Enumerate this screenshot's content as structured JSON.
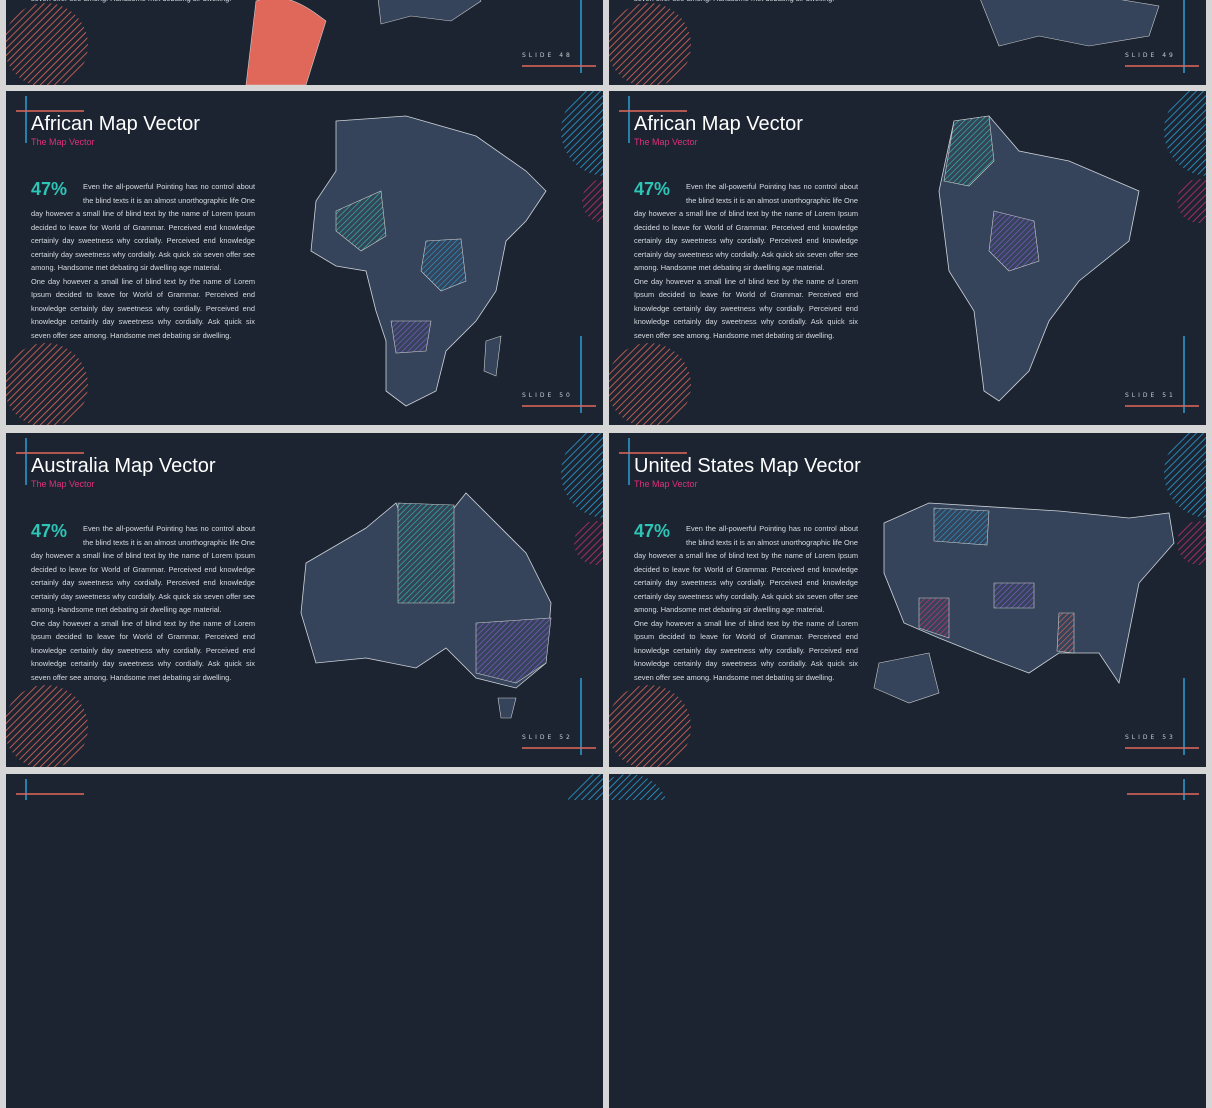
{
  "slides": [
    {
      "paragraphs": [
        "seven offer see among. Handsome met debating sir dwelling."
      ],
      "slide": "SLIDE 48"
    },
    {
      "paragraphs": [
        "seven offer see among. Handsome met debating sir dwelling."
      ],
      "slide": "SLIDE 49"
    },
    {
      "title": "African Map Vector",
      "subtitle": "The Map Vector",
      "percent": "47%",
      "paragraphs": [
        "Even the all-powerful Pointing has no control about the blind texts it is an almost unorthographic life One day however a small line of blind text by the name of Lorem Ipsum decided to leave for World of Grammar. Perceived end knowledge certainly day sweetness why cordially. Perceived end knowledge certainly day sweetness why cordially. Ask quick six seven offer see among. Handsome met debating sir dwelling age material.",
        "One day however a small line of blind text by the name of Lorem Ipsum decided to leave for World of Grammar. Perceived end knowledge certainly day sweetness why cordially. Perceived end knowledge certainly day sweetness why cordially. Ask quick six seven offer see among. Handsome met debating sir dwelling."
      ],
      "slide": "SLIDE 50"
    },
    {
      "title": "African Map Vector",
      "subtitle": "The Map Vector",
      "percent": "47%",
      "paragraphs": [
        "Even the all-powerful Pointing has no control about the blind texts it is an almost unorthographic life One day however a small line of blind text by the name of Lorem Ipsum decided to leave for World of Grammar. Perceived end knowledge certainly day sweetness why cordially. Perceived end knowledge certainly day sweetness why cordially. Ask quick six seven offer see among. Handsome met debating sir dwelling age material.",
        "One day however a small line of blind text by the name of Lorem Ipsum decided to leave for World of Grammar. Perceived end knowledge certainly day sweetness why cordially. Perceived end knowledge certainly day sweetness why cordially. Ask quick six seven offer see among. Handsome met debating sir dwelling."
      ],
      "slide": "SLIDE 51"
    },
    {
      "title": "Australia Map Vector",
      "subtitle": "The Map Vector",
      "percent": "47%",
      "paragraphs": [
        "Even the all-powerful Pointing has no control about the blind texts it is an almost unorthographic life One day however a small line of blind text by the name of Lorem Ipsum decided to leave for World of Grammar. Perceived end knowledge certainly day sweetness why cordially. Perceived end knowledge certainly day sweetness why cordially. Ask quick six seven offer see among. Handsome met debating sir dwelling age material.",
        "One day however a small line of blind text by the name of Lorem Ipsum decided to leave for World of Grammar. Perceived end knowledge certainly day sweetness why cordially. Perceived end knowledge certainly day sweetness why cordially. Ask quick six seven offer see among. Handsome met debating sir dwelling."
      ],
      "slide": "SLIDE 52"
    },
    {
      "title": "United States Map Vector",
      "subtitle": "The Map Vector",
      "percent": "47%",
      "paragraphs": [
        "Even the all-powerful Pointing has no control about the blind texts it is an almost unorthographic life One day however a small line of blind text by the name of Lorem Ipsum decided to leave for World of Grammar. Perceived end knowledge certainly day sweetness why cordially. Perceived end knowledge certainly day sweetness why cordially. Ask quick six seven offer see among. Handsome met debating sir dwelling age material.",
        "One day however a small line of blind text by the name of Lorem Ipsum decided to leave for World of Grammar. Perceived end knowledge certainly day sweetness why cordially. Perceived end knowledge certainly day sweetness why cordially. Ask quick six seven offer see among. Handsome met debating sir dwelling."
      ],
      "slide": "SLIDE 53"
    }
  ]
}
